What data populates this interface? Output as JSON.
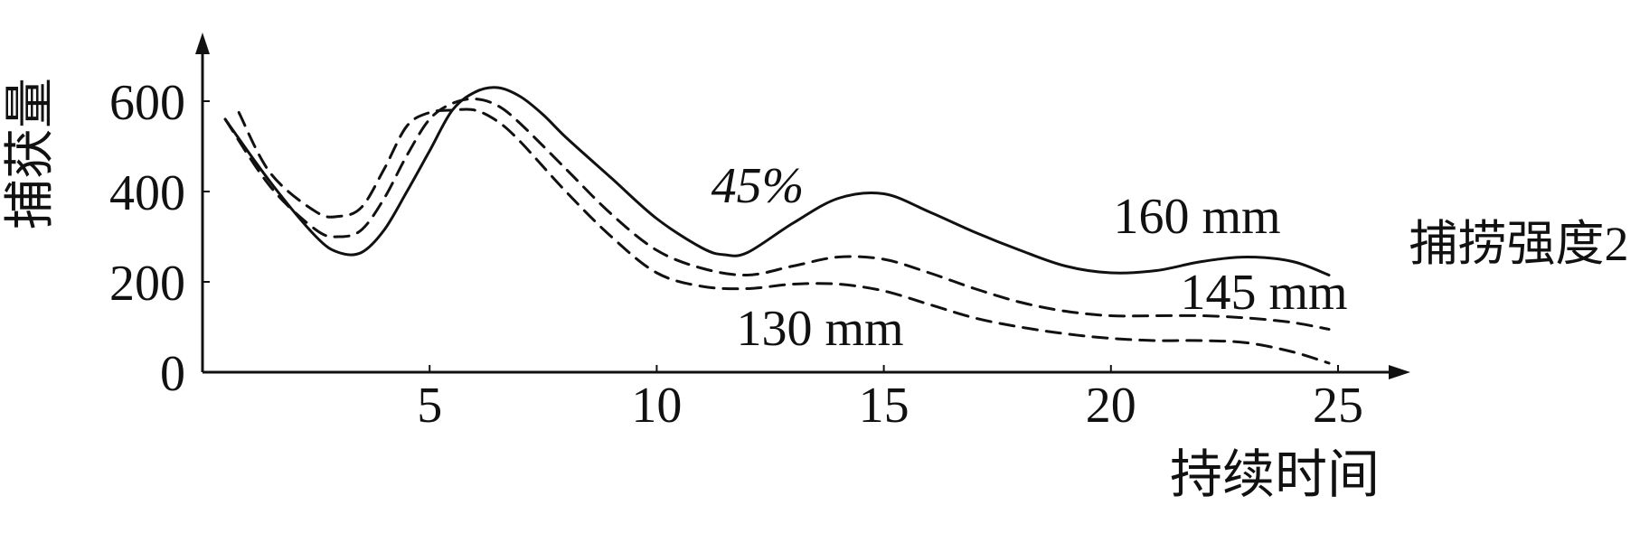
{
  "chart_data": {
    "type": "line",
    "title": "",
    "xlabel": "持续时间",
    "ylabel": "捕获量",
    "xlim": [
      0,
      25
    ],
    "ylim": [
      0,
      600
    ],
    "x_ticks": [
      "5",
      "10",
      "15",
      "20",
      "25"
    ],
    "y_ticks": [
      "0",
      "200",
      "400",
      "600"
    ],
    "grid": false,
    "annotations": {
      "top_right": "捕捞强度2",
      "curve_45": "45%",
      "curve_160": "160 mm",
      "curve_145": "145 mm",
      "curve_130": "130 mm"
    },
    "series": [
      {
        "name": "160 mm",
        "style": "solid",
        "x": [
          0.5,
          1.5,
          2.5,
          3.0,
          3.5,
          4.0,
          4.5,
          5.0,
          5.5,
          6.0,
          6.5,
          7.0,
          7.5,
          8.0,
          9.0,
          10.0,
          11.0,
          11.5,
          12.0,
          13.0,
          14.0,
          15.0,
          16.0,
          17.0,
          18.0,
          19.0,
          20.0,
          21.0,
          22.0,
          23.0,
          24.0,
          24.8
        ],
        "y": [
          560,
          420,
          300,
          265,
          265,
          315,
          400,
          490,
          580,
          620,
          630,
          610,
          570,
          520,
          430,
          340,
          275,
          260,
          265,
          330,
          385,
          395,
          355,
          310,
          270,
          235,
          220,
          225,
          245,
          255,
          245,
          215
        ]
      },
      {
        "name": "145 mm",
        "style": "dashed",
        "x": [
          0.5,
          1.5,
          2.5,
          3.0,
          3.5,
          4.0,
          4.5,
          5.0,
          5.5,
          6.0,
          6.5,
          7.0,
          8.0,
          9.0,
          10.0,
          11.0,
          12.0,
          13.0,
          14.0,
          15.0,
          16.0,
          17.0,
          18.0,
          19.0,
          20.0,
          21.0,
          22.0,
          23.0,
          24.0,
          24.8
        ],
        "y": [
          560,
          410,
          315,
          300,
          315,
          385,
          480,
          560,
          595,
          605,
          590,
          550,
          450,
          350,
          270,
          230,
          215,
          235,
          255,
          250,
          220,
          185,
          155,
          135,
          125,
          125,
          125,
          120,
          110,
          95
        ]
      },
      {
        "name": "130 mm",
        "style": "dashed",
        "x": [
          0.8,
          1.5,
          2.5,
          3.0,
          3.5,
          4.0,
          4.5,
          5.0,
          5.5,
          6.0,
          6.5,
          7.0,
          8.0,
          9.0,
          10.0,
          11.0,
          12.0,
          13.0,
          14.0,
          15.0,
          16.0,
          17.0,
          18.0,
          19.0,
          20.0,
          21.0,
          22.0,
          23.0,
          24.0,
          24.8
        ],
        "y": [
          575,
          440,
          355,
          345,
          365,
          450,
          545,
          575,
          580,
          580,
          555,
          510,
          400,
          300,
          220,
          190,
          185,
          195,
          195,
          180,
          150,
          120,
          100,
          85,
          75,
          70,
          70,
          65,
          45,
          20
        ]
      }
    ]
  }
}
